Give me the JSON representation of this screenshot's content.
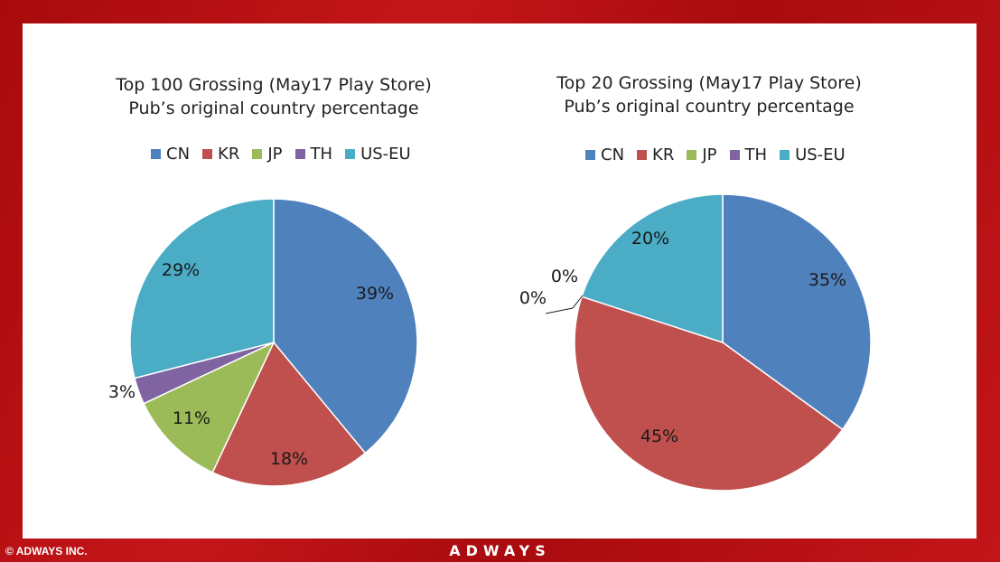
{
  "footer": {
    "copyright": "© ADWAYS INC.",
    "brand": "ADWAYS"
  },
  "colors": {
    "CN": "#4f81bd",
    "KR": "#c0504d",
    "JP": "#9bbb59",
    "TH": "#8064a2",
    "US-EU": "#4bacc6"
  },
  "chart_data": [
    {
      "type": "pie",
      "title": [
        "Top 100 Grossing (May17 Play Store)",
        "Pub’s original country percentage"
      ],
      "legend_position": "top",
      "categories": [
        "CN",
        "KR",
        "JP",
        "TH",
        "US-EU"
      ],
      "values": [
        39,
        18,
        11,
        3,
        29
      ],
      "labels": [
        "39%",
        "18%",
        "11%",
        "3%",
        "29%"
      ]
    },
    {
      "type": "pie",
      "title": [
        "Top 20 Grossing (May17 Play Store)",
        "Pub’s original country percentage"
      ],
      "legend_position": "top",
      "categories": [
        "CN",
        "KR",
        "JP",
        "TH",
        "US-EU"
      ],
      "values": [
        35,
        45,
        0,
        0,
        20
      ],
      "labels": [
        "35%",
        "45%",
        "0%",
        "0%",
        "20%"
      ]
    }
  ]
}
